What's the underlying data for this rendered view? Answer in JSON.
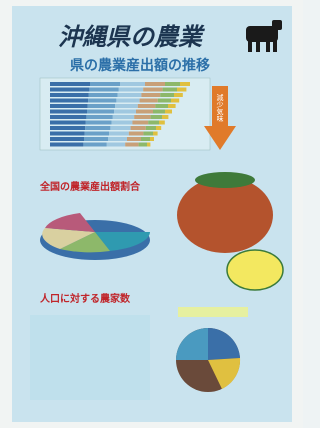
{
  "title": "沖縄県の農業",
  "sections": [
    {
      "heading": "県の農業産出額の推移",
      "annotation": "減少気味"
    },
    {
      "heading": "全国の農業産出額割合"
    },
    {
      "heading": "人口に対する農家数"
    }
  ]
}
